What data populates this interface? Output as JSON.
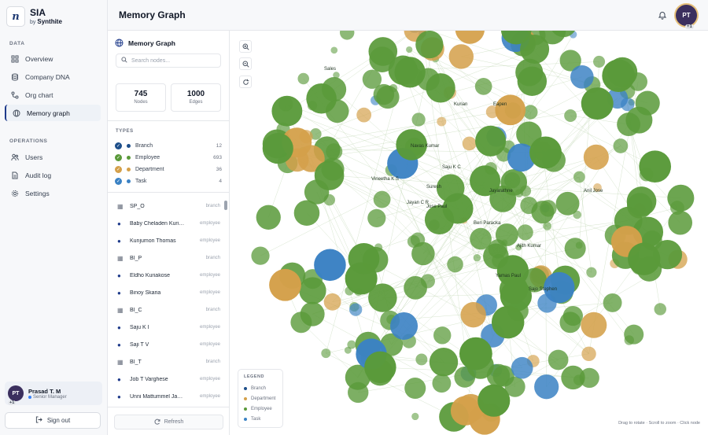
{
  "brand": {
    "logo": "n",
    "name": "SIA",
    "by": "by",
    "company": "Synthite"
  },
  "sidebar": {
    "data_label": "DATA",
    "data_items": [
      {
        "label": "Overview",
        "icon": "grid-icon"
      },
      {
        "label": "Company DNA",
        "icon": "database-icon"
      },
      {
        "label": "Org chart",
        "icon": "org-chart-icon"
      },
      {
        "label": "Memory graph",
        "icon": "memory-graph-icon"
      }
    ],
    "ops_label": "OPERATIONS",
    "ops_items": [
      {
        "label": "Users",
        "icon": "users-icon"
      },
      {
        "label": "Audit log",
        "icon": "document-icon"
      },
      {
        "label": "Settings",
        "icon": "gear-icon"
      }
    ],
    "user": {
      "initials": "PT",
      "badge": "+1",
      "name": "Prasad T. M",
      "role": "Senior Manager"
    },
    "signout": "Sign out"
  },
  "header": {
    "title": "Memory Graph",
    "avatar_initials": "PT",
    "avatar_badge": "+1"
  },
  "panel": {
    "title": "Memory Graph",
    "search_placeholder": "Search nodes...",
    "stats": [
      {
        "value": "745",
        "label": "Nodes"
      },
      {
        "value": "1000",
        "label": "Edges"
      }
    ],
    "types_label": "TYPES",
    "types": [
      {
        "label": "Branch",
        "count": "12",
        "color": "#1e4f8a"
      },
      {
        "label": "Employee",
        "count": "693",
        "color": "#5a9a3a"
      },
      {
        "label": "Department",
        "count": "36",
        "color": "#d4a04a"
      },
      {
        "label": "Task",
        "count": "4",
        "color": "#3b82c4"
      }
    ],
    "nodes": [
      {
        "name": "SP_O",
        "type": "branch"
      },
      {
        "name": "Baby Cheladen Kuriakose",
        "type": "employee"
      },
      {
        "name": "Kunjumon Thomas",
        "type": "employee"
      },
      {
        "name": "BI_P",
        "type": "branch"
      },
      {
        "name": "Eldho Kuriakose",
        "type": "employee"
      },
      {
        "name": "Binoy Skaria",
        "type": "employee"
      },
      {
        "name": "BI_C",
        "type": "branch"
      },
      {
        "name": "Saju K I",
        "type": "employee"
      },
      {
        "name": "Saji T V",
        "type": "employee"
      },
      {
        "name": "BI_T",
        "type": "branch"
      },
      {
        "name": "Job T Varghese",
        "type": "employee"
      },
      {
        "name": "Unni Mattummel Jayaram",
        "type": "employee"
      }
    ],
    "refresh": "Refresh"
  },
  "graph": {
    "labels": [
      "Sales",
      "Kurian",
      "Eapen",
      "Navas Kumar",
      "Saju K C",
      "Suresh",
      "Vineetha K S",
      "Jayan C R",
      "Jose Paul",
      "Jayarathne",
      "Ben Paracka",
      "Ajith Kumar",
      "Yamas Paul",
      "Sajo Stephen",
      "Anil Jose"
    ],
    "legend_title": "LEGEND",
    "legend": [
      {
        "label": "Branch",
        "color": "#1e4f8a"
      },
      {
        "label": "Department",
        "color": "#d4a04a"
      },
      {
        "label": "Employee",
        "color": "#5a9a3a"
      },
      {
        "label": "Task",
        "color": "#3b82c4"
      }
    ],
    "hint": "Drag to rotate · Scroll to zoom · Click node"
  }
}
